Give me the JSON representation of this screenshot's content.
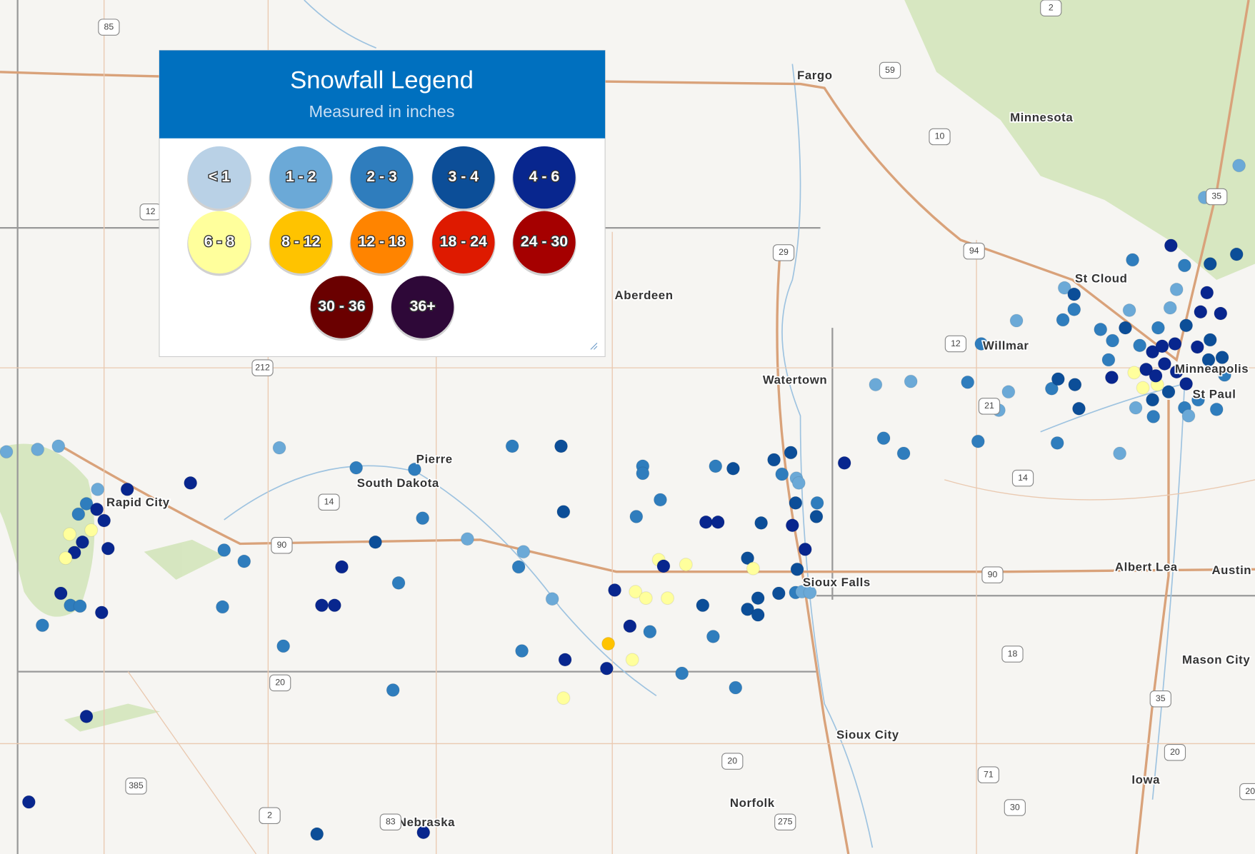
{
  "legend": {
    "title": "Snowfall Legend",
    "subtitle": "Measured in inches",
    "items": [
      {
        "label": "< 1",
        "color": "#b9d1e6"
      },
      {
        "label": "1 - 2",
        "color": "#6ba9d7"
      },
      {
        "label": "2 - 3",
        "color": "#2f7dbd"
      },
      {
        "label": "3 - 4",
        "color": "#0c4e98"
      },
      {
        "label": "4 - 6",
        "color": "#08268e"
      },
      {
        "label": "6 - 8",
        "color": "#ffff9c"
      },
      {
        "label": "8 - 12",
        "color": "#ffc300"
      },
      {
        "label": "12 - 18",
        "color": "#ff8400"
      },
      {
        "label": "18 - 24",
        "color": "#de1a00"
      },
      {
        "label": "24 - 30",
        "color": "#a50000"
      },
      {
        "label": "30 - 36",
        "color": "#6a0000"
      },
      {
        "label": "36+",
        "color": "#2e0838"
      }
    ]
  },
  "map": {
    "places": [
      "Fargo",
      "Minnesota",
      "St Cloud",
      "Willmar",
      "Aberdeen",
      "Watertown",
      "Minneapolis",
      "St Paul",
      "Pierre",
      "South Dakota",
      "Rapid City",
      "Sioux Falls",
      "Albert Lea",
      "Austin",
      "Mason City",
      "Sioux City",
      "Norfolk",
      "Nebraska",
      "Iowa"
    ],
    "shields": [
      "85",
      "2",
      "59",
      "10",
      "94",
      "29",
      "35",
      "12",
      "212",
      "14",
      "90",
      "12",
      "21",
      "14",
      "90",
      "18",
      "35",
      "20",
      "20",
      "20",
      "385",
      "2",
      "83",
      "275",
      "71",
      "30",
      "20"
    ]
  }
}
